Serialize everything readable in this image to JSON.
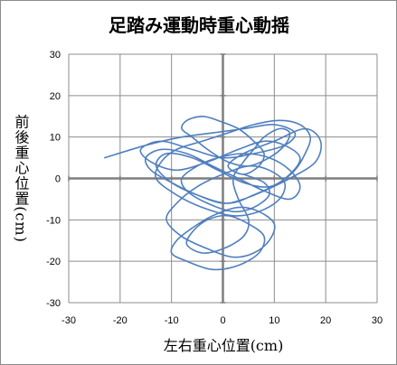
{
  "chart_data": {
    "type": "line",
    "title": "足踏み運動時重心動揺",
    "xlabel": "左右重心位置(cm)",
    "ylabel": "前後重心位置(cm)",
    "xlim": [
      -30,
      30
    ],
    "ylim": [
      -30,
      30
    ],
    "xticks": [
      -30,
      -20,
      -10,
      0,
      10,
      20,
      30
    ],
    "yticks": [
      -30,
      -20,
      -10,
      0,
      10,
      20,
      30
    ],
    "grid": true,
    "colors": {
      "series": "#4f7fbf",
      "grid": "#8c8c8c",
      "axis": "#7f7f7f"
    },
    "series": [
      {
        "x": [
          -23,
          -15,
          -8,
          -2,
          4,
          10,
          14,
          12,
          6,
          0,
          -6,
          -12,
          -16,
          -14,
          -9,
          -3,
          3,
          8,
          12,
          15,
          13,
          9,
          4,
          -1,
          -6,
          -11,
          -13,
          -10,
          -5,
          1,
          6,
          11,
          14,
          16,
          17,
          15,
          11,
          6,
          1,
          -4,
          -9,
          -12,
          -13,
          -9,
          -4,
          2,
          7,
          11,
          12,
          9,
          5,
          0,
          -5,
          -9,
          -11,
          -8,
          -3,
          2,
          6,
          9,
          10,
          7,
          3,
          -2,
          -6,
          -9,
          -10,
          -7,
          -2,
          3,
          7,
          8,
          5,
          1,
          -3,
          -6,
          -7,
          -4,
          0,
          4,
          5,
          3,
          2,
          4,
          6,
          8,
          11,
          13,
          12,
          9,
          5,
          1,
          -3,
          -6,
          -8,
          -7,
          -4,
          -1,
          3,
          6,
          8,
          7,
          4,
          1,
          4,
          10,
          16,
          19,
          18,
          13,
          8,
          4,
          0,
          -5,
          -10,
          -14,
          -15,
          -12,
          -7,
          -2,
          3,
          8,
          13,
          15,
          13,
          9,
          4,
          -1,
          -5,
          -8,
          -7,
          -3,
          2,
          6,
          9,
          8,
          4
        ],
        "y": [
          5,
          8,
          10,
          11,
          12,
          13,
          11,
          8,
          6,
          5,
          7,
          9,
          7,
          4,
          2,
          4,
          7,
          9,
          8,
          5,
          1,
          -2,
          -1,
          2,
          5,
          6,
          3,
          -1,
          -4,
          -6,
          -4,
          -1,
          2,
          6,
          10,
          13,
          14,
          13,
          11,
          9,
          7,
          4,
          0,
          -4,
          -7,
          -9,
          -8,
          -5,
          -1,
          2,
          3,
          1,
          -2,
          -6,
          -10,
          -14,
          -17,
          -19,
          -18,
          -15,
          -11,
          -8,
          -7,
          -9,
          -12,
          -15,
          -18,
          -20,
          -22,
          -21,
          -18,
          -14,
          -11,
          -9,
          -10,
          -13,
          -16,
          -18,
          -17,
          -14,
          -10,
          -5,
          0,
          4,
          7,
          10,
          12,
          11,
          8,
          5,
          3,
          4,
          7,
          10,
          12,
          14,
          15,
          14,
          12,
          9,
          6,
          3,
          1,
          3,
          6,
          9,
          12,
          9,
          4,
          0,
          -3,
          -5,
          -6,
          -4,
          -1,
          2,
          5,
          7,
          6,
          3,
          0,
          -3,
          -5,
          -2,
          2,
          5,
          6,
          5,
          3,
          0,
          -3,
          -6,
          -8,
          -7,
          -4,
          -1,
          1
        ]
      }
    ]
  }
}
